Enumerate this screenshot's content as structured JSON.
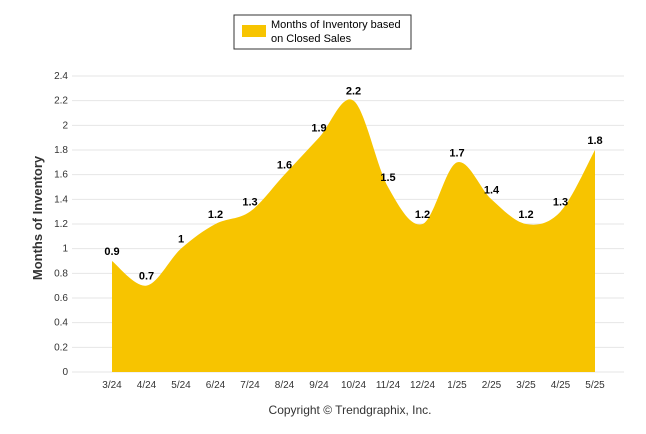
{
  "legend": {
    "line1": "Months of Inventory based",
    "line2": "on Closed Sales"
  },
  "footer": {
    "copyright": "Copyright © Trendgraphix, Inc."
  },
  "colors": {
    "area": "#f7c400",
    "grid": "#e6e6e6",
    "legend_border": "#333333"
  },
  "chart_data": {
    "type": "area",
    "title": "",
    "xlabel": "",
    "ylabel": "Months of Inventory",
    "ylim": [
      0,
      2.4
    ],
    "yticks": [
      "0",
      "0.2",
      "0.4",
      "0.6",
      "0.8",
      "1",
      "1.2",
      "1.4",
      "1.6",
      "1.8",
      "2",
      "2.2",
      "2.4"
    ],
    "grid": true,
    "legend_position": "top-center",
    "categories": [
      "3/24",
      "4/24",
      "5/24",
      "6/24",
      "7/24",
      "8/24",
      "9/24",
      "10/24",
      "11/24",
      "12/24",
      "1/25",
      "2/25",
      "3/25",
      "4/25",
      "5/25"
    ],
    "series": [
      {
        "name": "Months of Inventory based on Closed Sales",
        "values": [
          0.9,
          0.7,
          1,
          1.2,
          1.3,
          1.6,
          1.9,
          2.2,
          1.5,
          1.2,
          1.7,
          1.4,
          1.2,
          1.3,
          1.8
        ],
        "labels": [
          "0.9",
          "0.7",
          "1",
          "1.2",
          "1.3",
          "1.6",
          "1.9",
          "2.2",
          "1.5",
          "1.2",
          "1.7",
          "1.4",
          "1.2",
          "1.3",
          "1.8"
        ]
      }
    ]
  }
}
